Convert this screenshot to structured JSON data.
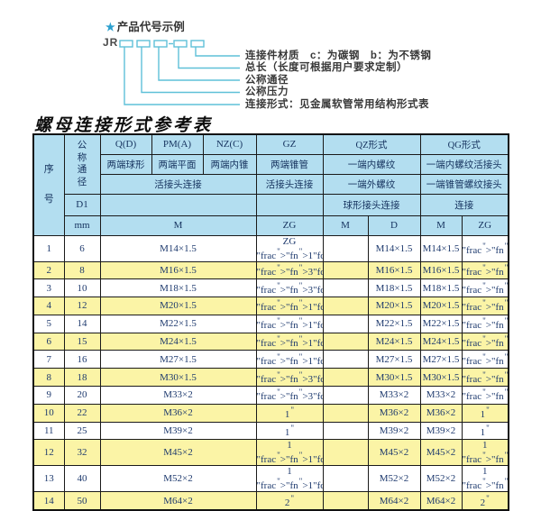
{
  "diagram": {
    "star": "★",
    "title": "产品代号示例",
    "prefix": "JR",
    "labels": [
      "连接件材质　c：为碳钢　b：为不锈钢",
      "总长（长度可根据用户要求定制）",
      "公称通径",
      "公称压力",
      "连接形式：见金属软管常用结构形式表"
    ],
    "line_color": "#5fc0d8"
  },
  "table": {
    "title": "螺母连接形式参考表",
    "header": {
      "seq": "序号",
      "dn": "公称通径",
      "d1": "D1",
      "mm": "mm",
      "g1": "Q(D)",
      "g2": "PM(A)",
      "g3": "NZ(C)",
      "g4": "GZ",
      "g5": "QZ形式",
      "g6": "QG形式",
      "t1": "两端球形",
      "t2": "两端平面",
      "t3": "两端内锥",
      "t4": "两端锥管",
      "t5": "一端内螺纹",
      "t6": "一端内螺纹活接头",
      "u1": "活接头连接",
      "u2": "活接头连接",
      "u3": "一端外螺纹",
      "u4": "一端锥管螺纹接头",
      "v1": "球形接头连接",
      "v2": "连接",
      "w1": "M",
      "w2": "ZG",
      "w3": "M",
      "w4": "D",
      "w5": "M",
      "w6": "ZG"
    },
    "rows": [
      {
        "seq": "1",
        "dn": "6",
        "m": "M14×1.5",
        "gz": "ZG 1/4\"",
        "qz_m": "",
        "qz_d": "M14×1.5",
        "qg_m": "M14×1.5",
        "qg_zg": "1/4\""
      },
      {
        "seq": "2",
        "dn": "8",
        "m": "M16×1.5",
        "gz": "3/8\"",
        "qz_m": "",
        "qz_d": "M16×1.5",
        "qg_m": "M16×1.5",
        "qg_zg": "3/8\""
      },
      {
        "seq": "3",
        "dn": "10",
        "m": "M18×1.5",
        "gz": "3/8\"",
        "qz_m": "",
        "qz_d": "M18×1.5",
        "qg_m": "M18×1.5",
        "qg_zg": "3/8\""
      },
      {
        "seq": "4",
        "dn": "12",
        "m": "M20×1.5",
        "gz": "1/2\"",
        "qz_m": "",
        "qz_d": "M20×1.5",
        "qg_m": "M20×1.5",
        "qg_zg": "1/2\""
      },
      {
        "seq": "5",
        "dn": "14",
        "m": "M22×1.5",
        "gz": "1/2\"",
        "qz_m": "",
        "qz_d": "M22×1.5",
        "qg_m": "M22×1.5",
        "qg_zg": "1/2\""
      },
      {
        "seq": "6",
        "dn": "15",
        "m": "M24×1.5",
        "gz": "1/2\"",
        "qz_m": "",
        "qz_d": "M24×1.5",
        "qg_m": "M24×1.5",
        "qg_zg": "1/2\""
      },
      {
        "seq": "7",
        "dn": "16",
        "m": "M27×1.5",
        "gz": "1/2\"",
        "qz_m": "",
        "qz_d": "M27×1.5",
        "qg_m": "M27×1.5",
        "qg_zg": "1/2\""
      },
      {
        "seq": "8",
        "dn": "18",
        "m": "M30×1.5",
        "gz": "3/4\"",
        "qz_m": "",
        "qz_d": "M30×1.5",
        "qg_m": "M30×1.5",
        "qg_zg": "3/4\""
      },
      {
        "seq": "9",
        "dn": "20",
        "m": "M33×2",
        "gz": "3/4\"",
        "qz_m": "",
        "qz_d": "M33×2",
        "qg_m": "M33×2",
        "qg_zg": "3/4\""
      },
      {
        "seq": "10",
        "dn": "22",
        "m": "M36×2",
        "gz": "1\"",
        "qz_m": "",
        "qz_d": "M36×2",
        "qg_m": "M36×2",
        "qg_zg": "1\""
      },
      {
        "seq": "11",
        "dn": "25",
        "m": "M39×2",
        "gz": "1\"",
        "qz_m": "",
        "qz_d": "M39×2",
        "qg_m": "M39×2",
        "qg_zg": "1\""
      },
      {
        "seq": "12",
        "dn": "32",
        "m": "M45×2",
        "gz": "1 1/4\"",
        "qz_m": "",
        "qz_d": "M45×2",
        "qg_m": "M45×2",
        "qg_zg": "1 1/4\""
      },
      {
        "seq": "13",
        "dn": "40",
        "m": "M52×2",
        "gz": "1 1/2\"",
        "qz_m": "",
        "qz_d": "M52×2",
        "qg_m": "M52×2",
        "qg_zg": "1 1/2\""
      },
      {
        "seq": "14",
        "dn": "50",
        "m": "M64×2",
        "gz": "2\"",
        "qz_m": "",
        "qz_d": "M64×2",
        "qg_m": "M64×2",
        "qg_zg": "2\""
      }
    ],
    "colors": {
      "header_bg": "#b3def0",
      "row_yellow": "#fbf4a6",
      "text_navy": "#1e3a6e",
      "border": "#1a1a1a"
    }
  }
}
